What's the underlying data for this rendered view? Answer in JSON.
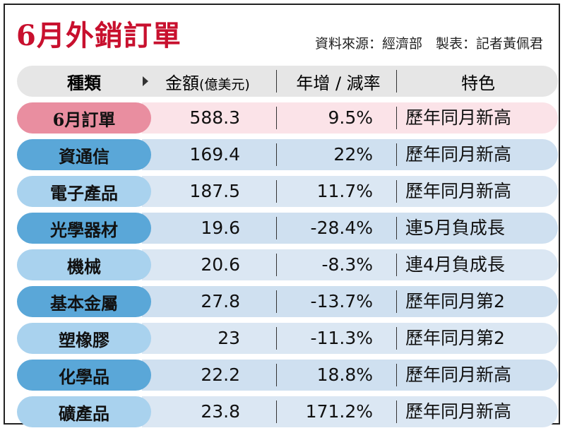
{
  "title": "6月外銷訂單",
  "source": "資料來源：經濟部　製表：記者黃佩君",
  "header": {
    "category": "種類",
    "amount": "金額",
    "amount_unit": "(億美元)",
    "yoy": "年增 / 減率",
    "note": "特色"
  },
  "rows": [
    {
      "category": "6月訂單",
      "amount": "588.3",
      "yoy": "9.5%",
      "note": "歷年同月新高"
    },
    {
      "category": "資通信",
      "amount": "169.4",
      "yoy": "22%",
      "note": "歷年同月新高"
    },
    {
      "category": "電子產品",
      "amount": "187.5",
      "yoy": "11.7%",
      "note": "歷年同月新高"
    },
    {
      "category": "光學器材",
      "amount": "19.6",
      "yoy": "-28.4%",
      "note": "連5月負成長"
    },
    {
      "category": "機械",
      "amount": "20.6",
      "yoy": "-8.3%",
      "note": "連4月負成長"
    },
    {
      "category": "基本金屬",
      "amount": "27.8",
      "yoy": "-13.7%",
      "note": "歷年同月第2"
    },
    {
      "category": "塑橡膠",
      "amount": "23",
      "yoy": "-11.3%",
      "note": "歷年同月第2"
    },
    {
      "category": "化學品",
      "amount": "22.2",
      "yoy": "18.8%",
      "note": "歷年同月新高"
    },
    {
      "category": "礦產品",
      "amount": "23.8",
      "yoy": "171.2%",
      "note": "歷年同月新高"
    }
  ],
  "colors": {
    "title": "#c8102e",
    "pill_dark": "#5aa7d8",
    "pill_light": "#a9d2ee",
    "pill_pink": "#e98ea0",
    "row_blue": "#dbe7f3",
    "row_pink": "#fbe3e8",
    "header_gray": "#e6e6e6"
  }
}
